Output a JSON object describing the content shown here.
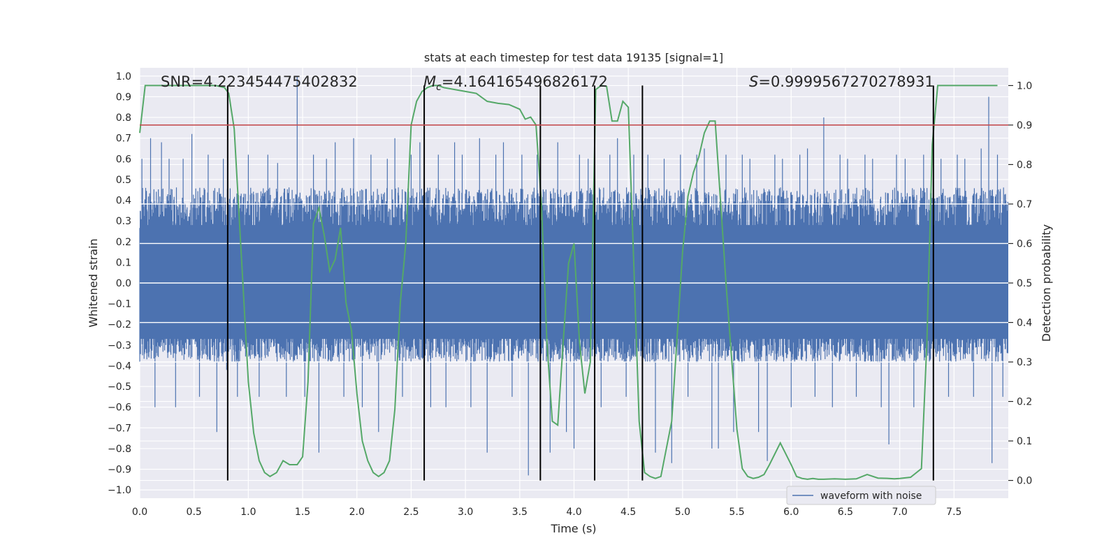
{
  "chart_data": {
    "type": "line",
    "title": "stats at each timestep for test data 19135 [signal=1]",
    "xlabel": "Time (s)",
    "ylabel": "Whitened strain",
    "y2label": "Detection probability",
    "xlim": [
      0.0,
      8.0
    ],
    "ylim": [
      -1.04,
      1.04
    ],
    "y2lim": [
      -0.045,
      1.045
    ],
    "xticks": [
      0.0,
      0.5,
      1.0,
      1.5,
      2.0,
      2.5,
      3.0,
      3.5,
      4.0,
      4.5,
      5.0,
      5.5,
      6.0,
      6.5,
      7.0,
      7.5
    ],
    "xtick_labels": [
      "0.0",
      "0.5",
      "1.0",
      "1.5",
      "2.0",
      "2.5",
      "3.0",
      "3.5",
      "4.0",
      "4.5",
      "5.0",
      "5.5",
      "6.0",
      "6.5",
      "7.0",
      "7.5"
    ],
    "yticks": [
      -1.0,
      -0.9,
      -0.8,
      -0.7,
      -0.6,
      -0.5,
      -0.4,
      -0.3,
      -0.2,
      -0.1,
      0.0,
      0.1,
      0.2,
      0.3,
      0.4,
      0.5,
      0.6,
      0.7,
      0.8,
      0.9,
      1.0
    ],
    "ytick_labels": [
      "−1.0",
      "−0.9",
      "−0.8",
      "−0.7",
      "−0.6",
      "−0.5",
      "−0.4",
      "−0.3",
      "−0.2",
      "−0.1",
      "0.0",
      "0.1",
      "0.2",
      "0.3",
      "0.4",
      "0.5",
      "0.6",
      "0.7",
      "0.8",
      "0.9",
      "1.0"
    ],
    "y2ticks": [
      0.0,
      0.1,
      0.2,
      0.3,
      0.4,
      0.5,
      0.6,
      0.7,
      0.8,
      0.9,
      1.0
    ],
    "y2tick_labels": [
      "0.0",
      "0.1",
      "0.2",
      "0.3",
      "0.4",
      "0.5",
      "0.6",
      "0.7",
      "0.8",
      "0.9",
      "1.0"
    ],
    "annotations": {
      "snr": "SNR=4.223454475402832",
      "mc_symbol": "M",
      "mc_sub": "c",
      "mc_value": "=4.164165496826172",
      "s_symbol": "S",
      "s_value": "=0.9999567270278931"
    },
    "legend": {
      "label": "waveform with noise",
      "location": "lower-right"
    },
    "threshold": {
      "value": 0.9,
      "axis": "right"
    },
    "vertical_lines": [
      0.81,
      2.62,
      3.69,
      4.19,
      4.63,
      7.31
    ],
    "waveform": {
      "name": "waveform with noise",
      "x_range": [
        0.0,
        8.0
      ],
      "dense_envelope": [
        -0.35,
        0.42
      ],
      "spikes": [
        [
          0.02,
          0.6
        ],
        [
          0.1,
          0.7
        ],
        [
          0.14,
          -0.6
        ],
        [
          0.2,
          0.68
        ],
        [
          0.27,
          0.6
        ],
        [
          0.33,
          -0.6
        ],
        [
          0.4,
          0.6
        ],
        [
          0.48,
          0.72
        ],
        [
          0.55,
          -0.55
        ],
        [
          0.63,
          0.62
        ],
        [
          0.71,
          -0.72
        ],
        [
          0.77,
          0.6
        ],
        [
          0.8,
          -0.42
        ],
        [
          0.9,
          -0.55
        ],
        [
          1.0,
          0.62
        ],
        [
          1.1,
          -0.55
        ],
        [
          1.18,
          0.62
        ],
        [
          1.27,
          0.58
        ],
        [
          1.35,
          -0.55
        ],
        [
          1.45,
          1.0
        ],
        [
          1.52,
          -0.55
        ],
        [
          1.6,
          0.62
        ],
        [
          1.65,
          -0.82
        ],
        [
          1.72,
          0.6
        ],
        [
          1.8,
          0.68
        ],
        [
          1.88,
          -0.55
        ],
        [
          1.97,
          0.7
        ],
        [
          2.05,
          -0.6
        ],
        [
          2.13,
          0.62
        ],
        [
          2.2,
          -0.72
        ],
        [
          2.28,
          0.6
        ],
        [
          2.35,
          0.7
        ],
        [
          2.42,
          -0.55
        ],
        [
          2.5,
          0.62
        ],
        [
          2.58,
          0.68
        ],
        [
          2.68,
          -0.6
        ],
        [
          2.75,
          0.62
        ],
        [
          2.82,
          -0.6
        ],
        [
          2.9,
          0.68
        ],
        [
          2.97,
          0.62
        ],
        [
          3.05,
          -0.6
        ],
        [
          3.13,
          0.7
        ],
        [
          3.2,
          -0.82
        ],
        [
          3.28,
          0.62
        ],
        [
          3.35,
          0.68
        ],
        [
          3.43,
          -0.55
        ],
        [
          3.52,
          0.62
        ],
        [
          3.58,
          -0.93
        ],
        [
          3.66,
          0.62
        ],
        [
          3.78,
          -0.82
        ],
        [
          3.85,
          0.68
        ],
        [
          3.93,
          -0.72
        ],
        [
          4.0,
          -0.8
        ],
        [
          4.05,
          0.62
        ],
        [
          4.13,
          0.6
        ],
        [
          4.25,
          -0.6
        ],
        [
          4.33,
          0.62
        ],
        [
          4.4,
          0.7
        ],
        [
          4.48,
          -0.55
        ],
        [
          4.55,
          0.62
        ],
        [
          4.68,
          0.62
        ],
        [
          4.75,
          -0.82
        ],
        [
          4.83,
          0.6
        ],
        [
          4.9,
          -0.87
        ],
        [
          4.98,
          0.62
        ],
        [
          5.05,
          -0.55
        ],
        [
          5.13,
          0.62
        ],
        [
          5.2,
          0.65
        ],
        [
          5.27,
          -0.8
        ],
        [
          5.33,
          -0.8
        ],
        [
          5.4,
          0.62
        ],
        [
          5.47,
          -0.72
        ],
        [
          5.55,
          0.62
        ],
        [
          5.62,
          0.6
        ],
        [
          5.7,
          -0.72
        ],
        [
          5.78,
          -0.86
        ],
        [
          5.85,
          0.62
        ],
        [
          5.92,
          0.6
        ],
        [
          6.0,
          -0.6
        ],
        [
          6.08,
          0.62
        ],
        [
          6.15,
          0.65
        ],
        [
          6.22,
          -0.55
        ],
        [
          6.3,
          0.8
        ],
        [
          6.38,
          -0.6
        ],
        [
          6.45,
          0.62
        ],
        [
          6.52,
          0.6
        ],
        [
          6.6,
          -0.55
        ],
        [
          6.68,
          0.62
        ],
        [
          6.75,
          0.6
        ],
        [
          6.83,
          -0.6
        ],
        [
          6.9,
          -0.78
        ],
        [
          6.97,
          0.62
        ],
        [
          7.05,
          0.6
        ],
        [
          7.13,
          -0.6
        ],
        [
          7.22,
          0.62
        ],
        [
          7.38,
          0.6
        ],
        [
          7.45,
          -0.55
        ],
        [
          7.53,
          0.62
        ],
        [
          7.6,
          0.6
        ],
        [
          7.68,
          -0.55
        ],
        [
          7.75,
          0.65
        ],
        [
          7.82,
          0.9
        ],
        [
          7.85,
          -0.87
        ],
        [
          7.9,
          0.62
        ],
        [
          7.95,
          -0.55
        ]
      ]
    },
    "probability": {
      "name": "detection probability",
      "x": [
        0.0,
        0.05,
        0.1,
        0.2,
        0.5,
        0.7,
        0.78,
        0.82,
        0.87,
        0.95,
        1.0,
        1.05,
        1.1,
        1.15,
        1.2,
        1.26,
        1.32,
        1.38,
        1.45,
        1.5,
        1.55,
        1.6,
        1.65,
        1.7,
        1.75,
        1.8,
        1.85,
        1.9,
        1.95,
        2.0,
        2.05,
        2.1,
        2.15,
        2.2,
        2.25,
        2.3,
        2.35,
        2.4,
        2.45,
        2.5,
        2.55,
        2.6,
        2.65,
        2.7,
        2.75,
        2.8,
        2.9,
        3.0,
        3.1,
        3.2,
        3.3,
        3.4,
        3.5,
        3.55,
        3.6,
        3.65,
        3.7,
        3.75,
        3.8,
        3.85,
        3.9,
        3.95,
        4.0,
        4.05,
        4.1,
        4.15,
        4.2,
        4.25,
        4.3,
        4.35,
        4.4,
        4.45,
        4.5,
        4.55,
        4.6,
        4.65,
        4.7,
        4.75,
        4.8,
        4.9,
        5.0,
        5.05,
        5.1,
        5.15,
        5.2,
        5.25,
        5.3,
        5.4,
        5.5,
        5.55,
        5.6,
        5.65,
        5.7,
        5.75,
        5.8,
        5.9,
        6.0,
        6.05,
        6.1,
        6.15,
        6.2,
        6.25,
        6.3,
        6.4,
        6.5,
        6.6,
        6.7,
        6.8,
        6.9,
        6.95,
        7.0,
        7.1,
        7.2,
        7.25,
        7.3,
        7.35,
        7.4,
        7.45,
        7.5,
        7.7,
        7.9
      ],
      "y": [
        0.88,
        1.0,
        1.0,
        1.0,
        1.0,
        1.0,
        0.995,
        0.98,
        0.89,
        0.5,
        0.25,
        0.12,
        0.05,
        0.02,
        0.01,
        0.02,
        0.05,
        0.04,
        0.04,
        0.06,
        0.25,
        0.65,
        0.69,
        0.62,
        0.53,
        0.56,
        0.64,
        0.45,
        0.38,
        0.22,
        0.1,
        0.05,
        0.02,
        0.01,
        0.02,
        0.05,
        0.18,
        0.45,
        0.6,
        0.9,
        0.96,
        0.985,
        0.995,
        1.0,
        1.0,
        0.995,
        0.99,
        0.985,
        0.98,
        0.96,
        0.955,
        0.952,
        0.94,
        0.915,
        0.92,
        0.9,
        0.7,
        0.35,
        0.15,
        0.14,
        0.35,
        0.55,
        0.6,
        0.35,
        0.22,
        0.3,
        0.99,
        1.0,
        0.998,
        0.91,
        0.91,
        0.96,
        0.945,
        0.55,
        0.15,
        0.02,
        0.01,
        0.005,
        0.01,
        0.15,
        0.58,
        0.72,
        0.78,
        0.82,
        0.88,
        0.91,
        0.91,
        0.5,
        0.13,
        0.03,
        0.01,
        0.005,
        0.008,
        0.015,
        0.04,
        0.095,
        0.04,
        0.01,
        0.005,
        0.003,
        0.005,
        0.003,
        0.003,
        0.004,
        0.003,
        0.004,
        0.015,
        0.006,
        0.005,
        0.004,
        0.005,
        0.008,
        0.03,
        0.35,
        0.85,
        1.0,
        1.0,
        1.0,
        1.0,
        1.0,
        1.0
      ]
    },
    "colors": {
      "waveform": "#4c72b0",
      "probability": "#55a868",
      "threshold": "#c44e52",
      "vline": "#000000",
      "plot_bg": "#eaeaf2",
      "grid": "#ffffff",
      "text": "#262626"
    }
  }
}
